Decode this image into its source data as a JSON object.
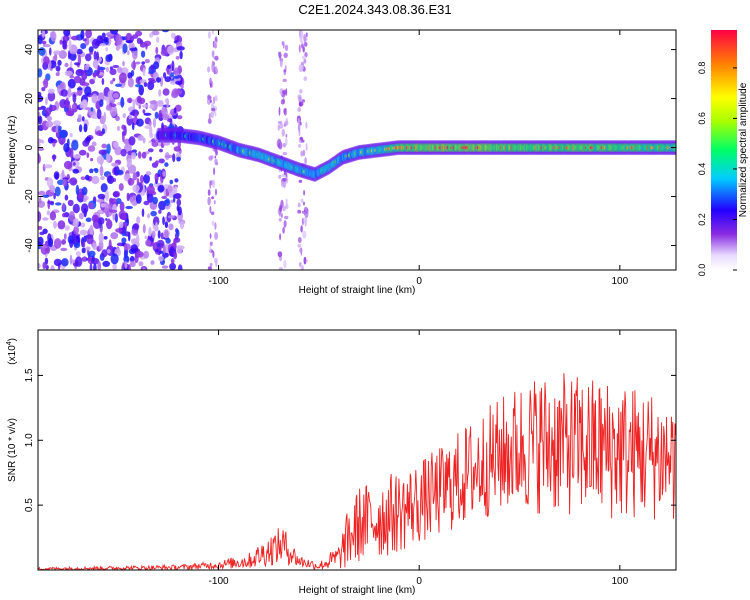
{
  "title": "C2E1.2024.343.08.36.E31",
  "chart_data": [
    {
      "type": "heatmap",
      "name": "spectrogram",
      "xlabel": "Height of straight line (km)",
      "ylabel": "Frequency (Hz)",
      "xlim": [
        -190,
        128
      ],
      "ylim": [
        -50,
        48
      ],
      "xticks": [
        -100,
        0,
        100
      ],
      "xtick_labels": [
        "-100",
        "0",
        "100"
      ],
      "yticks": [
        -40,
        -20,
        0,
        20,
        40
      ],
      "ytick_labels": [
        "-40",
        "-20",
        "0",
        "20",
        "40"
      ],
      "colorbar": {
        "label": "Normalized spectral amplitude",
        "range": [
          0,
          0.95
        ],
        "ticks": [
          0.0,
          0.2,
          0.4,
          0.6,
          0.8
        ],
        "tick_labels": [
          "0.0",
          "0.2",
          "0.4",
          "0.6",
          "0.8"
        ]
      },
      "ridge": {
        "x": [
          -130,
          -120,
          -110,
          -100,
          -90,
          -80,
          -70,
          -60,
          -52,
          -45,
          -38,
          -30,
          -20,
          -10,
          0,
          20,
          50,
          80,
          110,
          128
        ],
        "y": [
          5,
          5,
          4,
          2,
          -1,
          -3,
          -6,
          -9,
          -11,
          -8,
          -4,
          -2,
          -1,
          0,
          0,
          0,
          0,
          0,
          0,
          0
        ],
        "amplitude": [
          0.3,
          0.35,
          0.4,
          0.45,
          0.5,
          0.55,
          0.55,
          0.55,
          0.5,
          0.6,
          0.5,
          0.55,
          0.6,
          0.75,
          0.85,
          0.85,
          0.8,
          0.8,
          0.75,
          0.7
        ]
      },
      "noise_region_x": [
        -190,
        -118
      ],
      "stripes_x": [
        -103,
        -68,
        -58
      ]
    },
    {
      "type": "line",
      "name": "snr",
      "xlabel": "Height of straight line (km)",
      "ylabel": "SNR (10 * v/v)",
      "y_multiplier": "(x10",
      "y_multiplier_exp": "4",
      "xlim": [
        -190,
        128
      ],
      "ylim": [
        0,
        1.85
      ],
      "xticks": [
        -100,
        0,
        100
      ],
      "xtick_labels": [
        "-100",
        "0",
        "100"
      ],
      "yticks": [
        0.5,
        1.0,
        1.5
      ],
      "ytick_labels": [
        "0.5",
        "1.0",
        "1.5"
      ],
      "series": [
        {
          "name": "SNR",
          "color": "#ee2222",
          "envelope_x": [
            -190,
            -150,
            -120,
            -100,
            -85,
            -75,
            -68,
            -60,
            -50,
            -40,
            -35,
            -30,
            -25,
            -20,
            -10,
            0,
            10,
            20,
            30,
            40,
            50,
            60,
            70,
            80,
            90,
            100,
            110,
            120,
            128
          ],
          "envelope_mean": [
            0.01,
            0.015,
            0.02,
            0.04,
            0.07,
            0.15,
            0.2,
            0.07,
            0.03,
            0.1,
            0.25,
            0.35,
            0.38,
            0.4,
            0.45,
            0.52,
            0.6,
            0.7,
            0.8,
            0.88,
            0.95,
            0.98,
            0.97,
            0.96,
            0.94,
            0.92,
            0.9,
            0.88,
            0.85
          ],
          "envelope_spread": [
            0.01,
            0.015,
            0.02,
            0.03,
            0.06,
            0.12,
            0.15,
            0.05,
            0.03,
            0.1,
            0.25,
            0.3,
            0.3,
            0.32,
            0.32,
            0.32,
            0.35,
            0.38,
            0.42,
            0.45,
            0.5,
            0.55,
            0.55,
            0.55,
            0.55,
            0.55,
            0.52,
            0.5,
            0.5
          ]
        }
      ]
    }
  ]
}
